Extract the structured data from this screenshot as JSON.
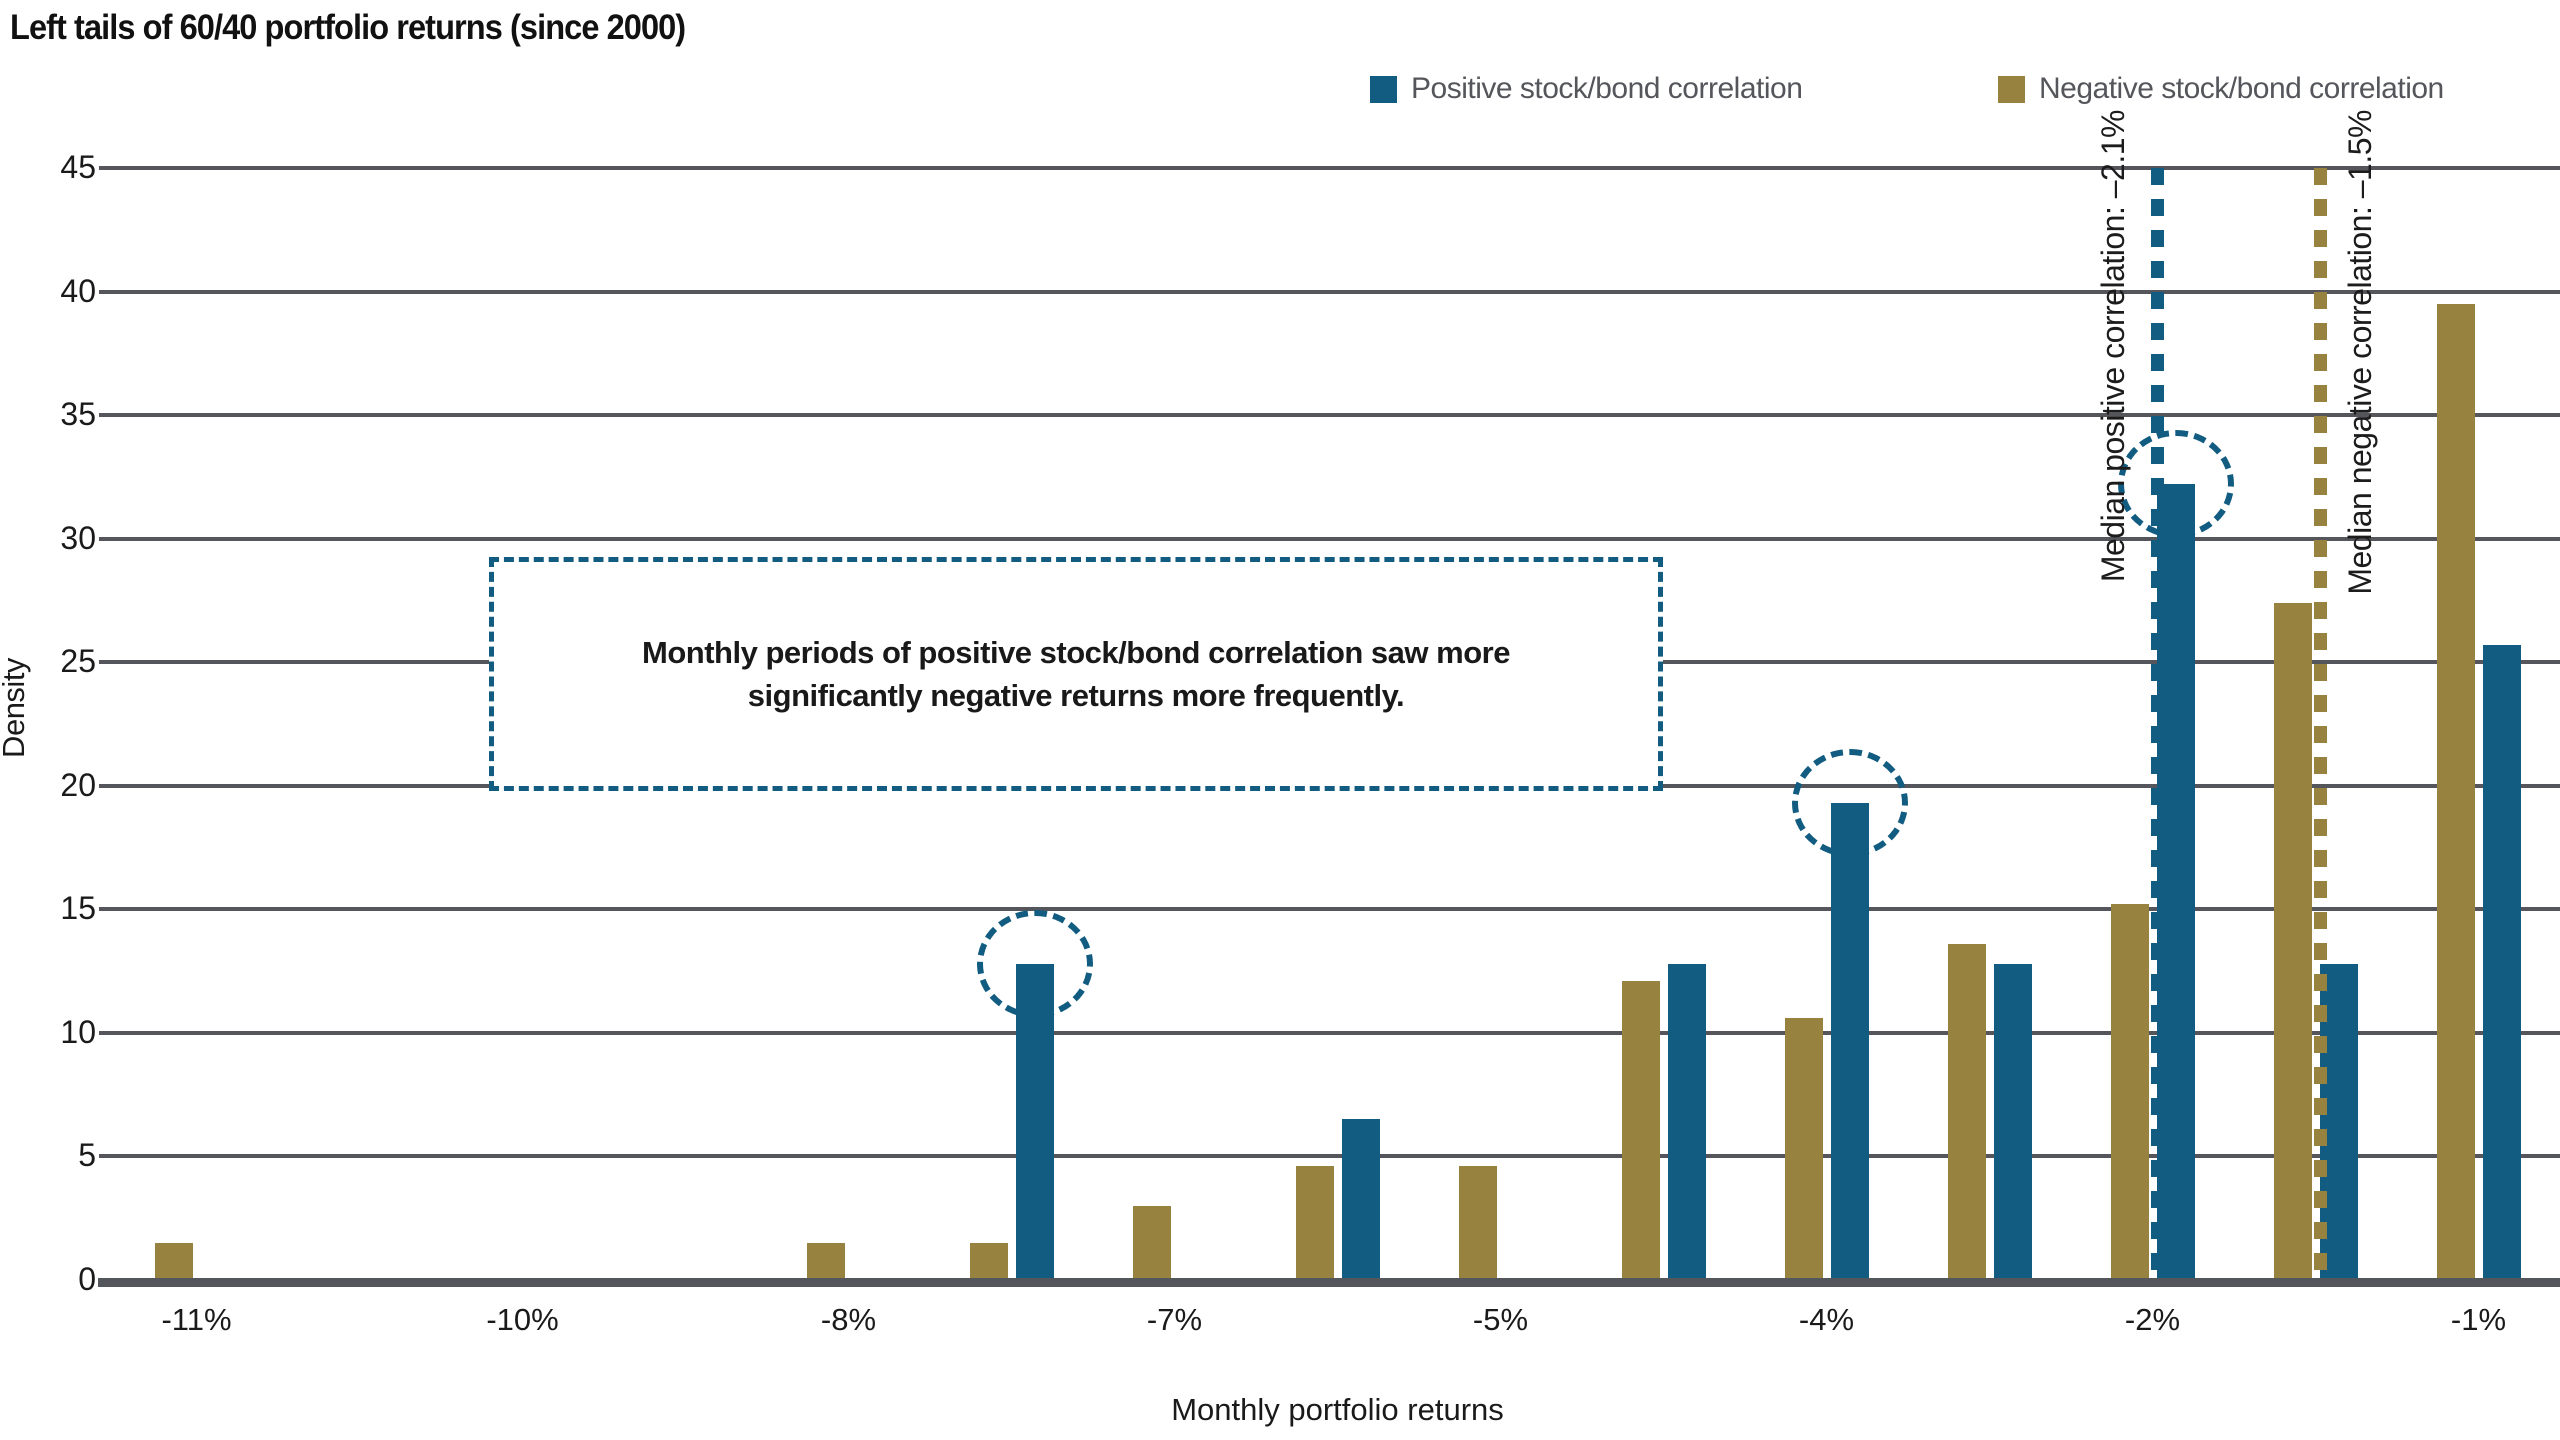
{
  "title": "Left tails of 60/40 portfolio returns (since 2000)",
  "legend": {
    "positive": {
      "label": "Positive stock/bond correlation",
      "color": "#115C80"
    },
    "negative": {
      "label": "Negative stock/bond correlation",
      "color": "#97833F"
    }
  },
  "annotation": {
    "line1": "Monthly periods of positive stock/bond correlation saw more",
    "line2": "significantly negative returns more frequently."
  },
  "median_lines": [
    {
      "series": "positive",
      "label": "Median positive correlation: –2.1%",
      "slot": 12,
      "color": "#115C80",
      "label_side": "left"
    },
    {
      "series": "negative",
      "label": "Median negative correlation: –1.5%",
      "slot": 13,
      "color": "#97833F",
      "label_side": "right"
    }
  ],
  "chart_data": {
    "type": "bar",
    "title": "Left tails of 60/40 portfolio returns (since 2000)",
    "xlabel": "Monthly portfolio returns",
    "ylabel": "Density",
    "ylim": [
      0,
      45
    ],
    "y_ticks": [
      0,
      5,
      10,
      15,
      20,
      25,
      30,
      35,
      40,
      45
    ],
    "grid": "horizontal",
    "legend_position": "top-right",
    "categories": [
      "-11%",
      "",
      "-10%",
      "",
      "-8%",
      "",
      "-7%",
      "",
      "-5%",
      "",
      "-4%",
      "",
      "-2%",
      "",
      "-1%"
    ],
    "series": [
      {
        "name": "Negative stock/bond correlation",
        "color": "#97833F",
        "values": [
          1.5,
          null,
          null,
          null,
          1.5,
          1.5,
          3.0,
          4.6,
          4.6,
          12.1,
          10.6,
          13.6,
          15.2,
          27.4,
          39.5
        ]
      },
      {
        "name": "Positive stock/bond correlation",
        "color": "#115C80",
        "values": [
          null,
          null,
          null,
          null,
          null,
          12.8,
          null,
          6.5,
          null,
          12.8,
          19.3,
          12.8,
          32.2,
          12.8,
          25.7
        ]
      }
    ],
    "circled_positive_slots": [
      5,
      10,
      12
    ],
    "median_positive": "-2.1%",
    "median_negative": "-1.5%"
  }
}
